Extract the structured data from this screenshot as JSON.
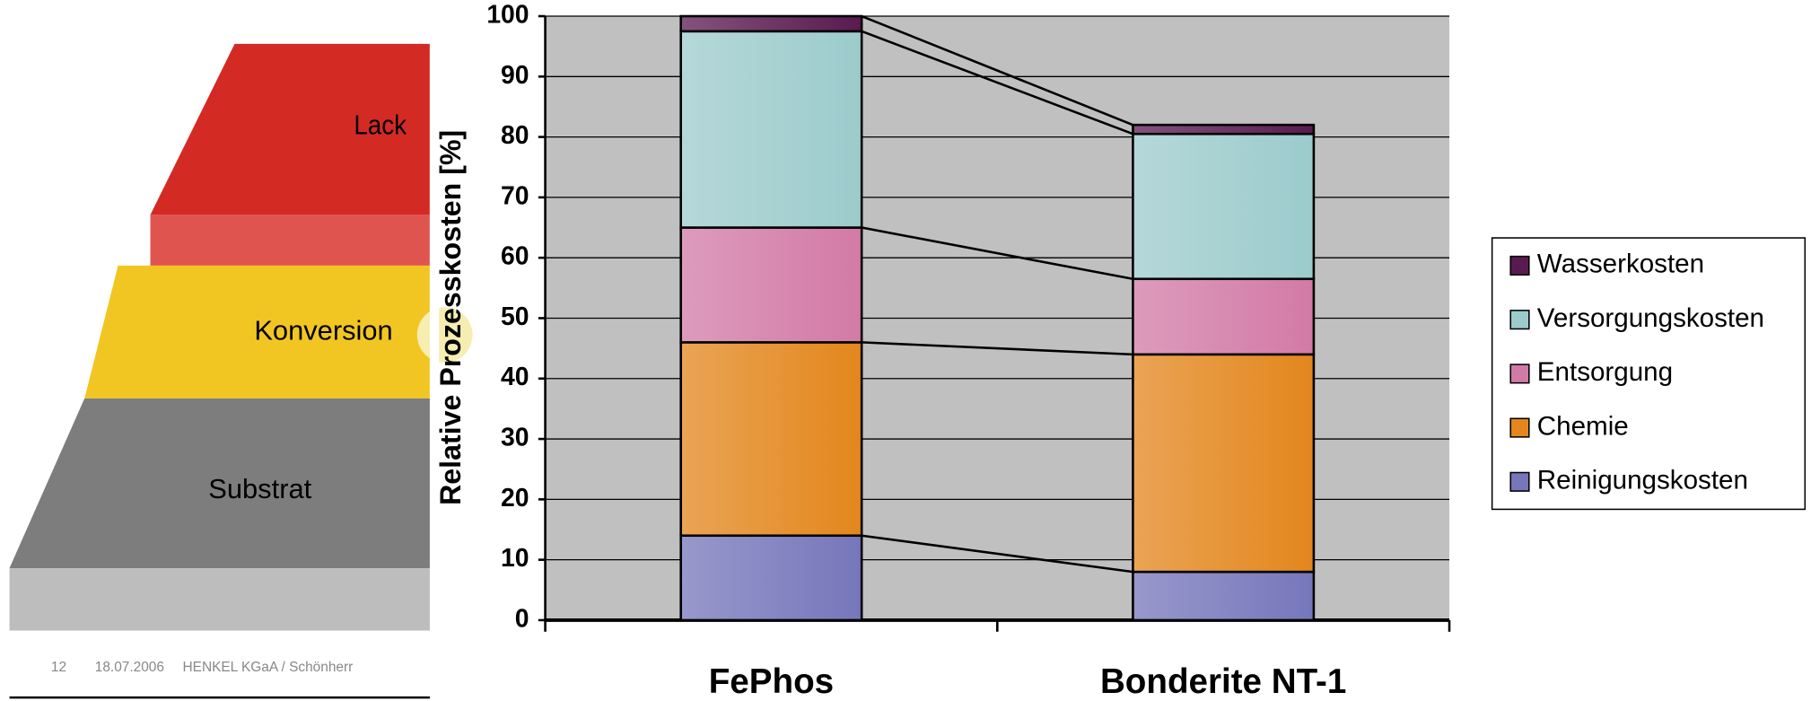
{
  "diagram": {
    "layers": [
      "Lack",
      "Konversion",
      "Substrat"
    ]
  },
  "footer": {
    "page": "12",
    "date": "18.07.2006",
    "source": "HENKEL KGaA / Schönherr"
  },
  "chart_data": {
    "type": "stacked_bar",
    "y_label": "Relative Prozesskosten [%]",
    "categories": [
      "FePhos",
      "Bonderite NT-1"
    ],
    "series": [
      {
        "name": "Reinigungskosten",
        "color": "#7676bb",
        "values": [
          14,
          8
        ]
      },
      {
        "name": "Chemie",
        "color": "#e3861c",
        "values": [
          32,
          36
        ]
      },
      {
        "name": "Entsorgung",
        "color": "#d27aa6",
        "values": [
          19,
          12.5
        ]
      },
      {
        "name": "Versorgungskosten",
        "color": "#9ccbcc",
        "values": [
          32.5,
          24
        ]
      },
      {
        "name": "Wasserkosten",
        "color": "#5a1a50",
        "values": [
          2.5,
          1.5
        ]
      }
    ],
    "ylim": [
      0,
      100
    ],
    "yticks": [
      0,
      10,
      20,
      30,
      40,
      50,
      60,
      70,
      80,
      90,
      100
    ],
    "grid": true,
    "legend": "right"
  }
}
